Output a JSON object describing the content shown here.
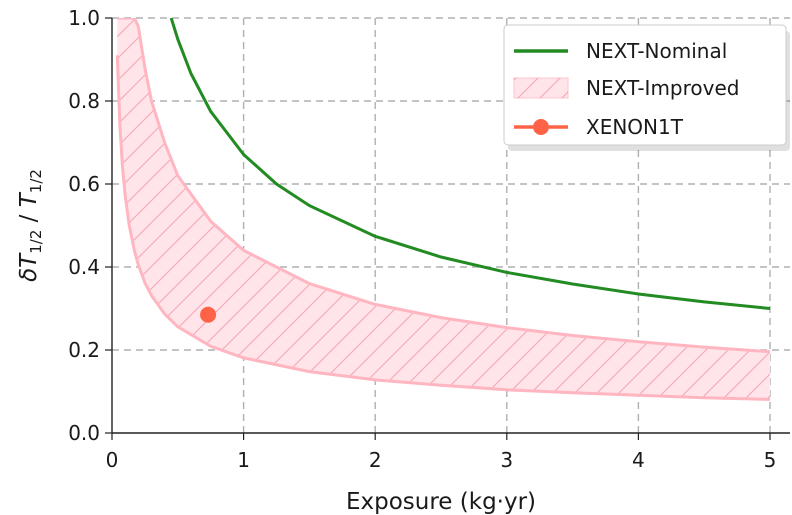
{
  "chart_data": {
    "type": "line",
    "xlabel": "Exposure (kg·yr)",
    "ylabel": "δT1/2 / T1/2",
    "ylabel_parts": {
      "delta": "δ",
      "T": "T",
      "sub": "1/2",
      "slash": " / "
    },
    "xlim": [
      0,
      5
    ],
    "ylim": [
      0,
      1.0
    ],
    "xticks": [
      0,
      1,
      2,
      3,
      4,
      5
    ],
    "yticks": [
      0.0,
      0.2,
      0.4,
      0.6,
      0.8,
      1.0
    ],
    "xtick_labels": [
      "0",
      "1",
      "2",
      "3",
      "4",
      "5"
    ],
    "ytick_labels": [
      "0.0",
      "0.2",
      "0.4",
      "0.6",
      "0.8",
      "1.0"
    ],
    "grid": true,
    "legend_position": "top-right",
    "series": [
      {
        "name": "NEXT-Nominal",
        "kind": "line",
        "color": "#228b22",
        "x": [
          0.45,
          0.5,
          0.6,
          0.75,
          1.0,
          1.25,
          1.5,
          2.0,
          2.5,
          3.0,
          3.5,
          4.0,
          4.5,
          5.0
        ],
        "y": [
          1.0,
          0.949,
          0.866,
          0.775,
          0.671,
          0.6,
          0.548,
          0.474,
          0.424,
          0.387,
          0.359,
          0.335,
          0.316,
          0.3
        ]
      },
      {
        "name": "NEXT-Improved",
        "kind": "band",
        "color": "#ffb6c1",
        "fill": "#ffe4e9",
        "x": [
          0.04,
          0.06,
          0.08,
          0.1,
          0.13,
          0.17,
          0.2,
          0.25,
          0.3,
          0.4,
          0.5,
          0.75,
          1.0,
          1.5,
          2.0,
          2.5,
          3.0,
          3.5,
          4.0,
          4.5,
          5.0
        ],
        "upper": [
          1.0,
          1.0,
          1.0,
          1.0,
          1.0,
          1.0,
          0.98,
          0.88,
          0.8,
          0.7,
          0.62,
          0.51,
          0.44,
          0.36,
          0.31,
          0.278,
          0.254,
          0.235,
          0.22,
          0.207,
          0.196
        ],
        "lower": [
          0.91,
          0.74,
          0.64,
          0.572,
          0.502,
          0.439,
          0.405,
          0.362,
          0.331,
          0.287,
          0.256,
          0.209,
          0.181,
          0.148,
          0.128,
          0.115,
          0.104,
          0.097,
          0.091,
          0.085,
          0.081
        ]
      },
      {
        "name": "XENON1T",
        "kind": "point",
        "color": "#ff6347",
        "x": [
          0.73
        ],
        "y": [
          0.285
        ]
      }
    ]
  }
}
